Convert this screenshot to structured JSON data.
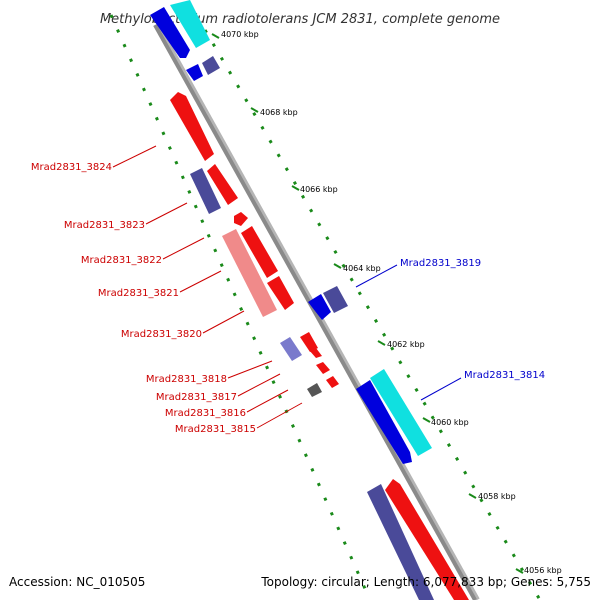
{
  "title": "Methylobacterium radiotolerans JCM 2831, complete genome",
  "accession": "Accession: NC_010505",
  "topology": "Topology: circular; Length: 6,077,833 bp; Genes: 5,755",
  "colors": {
    "forward_gene": "#ff0000",
    "forward_gene_light": "#f08080",
    "reverse_gene": "#0000ee",
    "reverse_gene_cyan": "#00e5e5",
    "dark_gene": "#4a4a99",
    "backbone": "#8c8c8c",
    "tick": "#1a8a1a",
    "label_red": "#cc0000",
    "label_blue": "#0000cc"
  },
  "kbp_markers": [
    {
      "id": "4070",
      "label": "4070 kbp"
    },
    {
      "id": "4068",
      "label": "4068 kbp"
    },
    {
      "id": "4066",
      "label": "4066 kbp"
    },
    {
      "id": "4064",
      "label": "4064 kbp"
    },
    {
      "id": "4062",
      "label": "4062 kbp"
    },
    {
      "id": "4060",
      "label": "4060 kbp"
    },
    {
      "id": "4058",
      "label": "4058 kbp"
    },
    {
      "id": "4056",
      "label": "4056 kbp"
    }
  ],
  "gene_labels": [
    {
      "id": "3824",
      "label": "Mrad2831_3824",
      "strand": "forward"
    },
    {
      "id": "3823",
      "label": "Mrad2831_3823",
      "strand": "forward"
    },
    {
      "id": "3822",
      "label": "Mrad2831_3822",
      "strand": "forward"
    },
    {
      "id": "3821",
      "label": "Mrad2831_3821",
      "strand": "forward"
    },
    {
      "id": "3820",
      "label": "Mrad2831_3820",
      "strand": "forward"
    },
    {
      "id": "3818",
      "label": "Mrad2831_3818",
      "strand": "forward"
    },
    {
      "id": "3817",
      "label": "Mrad2831_3817",
      "strand": "forward"
    },
    {
      "id": "3816",
      "label": "Mrad2831_3816",
      "strand": "forward"
    },
    {
      "id": "3815",
      "label": "Mrad2831_3815",
      "strand": "forward"
    },
    {
      "id": "3819",
      "label": "Mrad2831_3819",
      "strand": "reverse"
    },
    {
      "id": "3814",
      "label": "Mrad2831_3814",
      "strand": "reverse"
    }
  ]
}
